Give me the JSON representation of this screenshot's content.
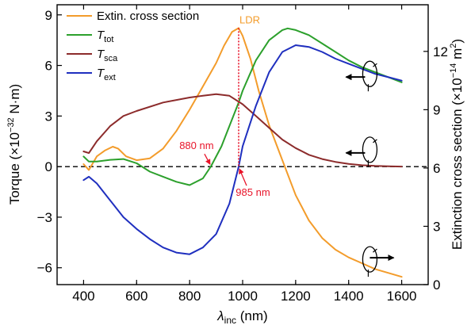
{
  "chart_data": {
    "type": "line",
    "x_axis": {
      "label_symbol": "λ",
      "label_sub": "inc",
      "label_unit": " (nm)",
      "range": [
        300,
        1700
      ],
      "ticks": [
        400,
        600,
        800,
        1000,
        1200,
        1400,
        1600
      ]
    },
    "y_left": {
      "label_pre": "Torque (×10",
      "label_exp": "−32",
      "label_post": " N·m)",
      "range": [
        -7,
        9.6
      ],
      "ticks": [
        -6,
        -3,
        0,
        3,
        6,
        9
      ]
    },
    "y_right": {
      "label_pre": "Extinction cross section (×10",
      "label_exp": "−14",
      "label_mid": " m",
      "label_exp2": "2",
      "label_post": ")",
      "range": [
        0,
        14.4
      ],
      "ticks": [
        0,
        3,
        6,
        9,
        12
      ]
    },
    "legend_position": "top-left",
    "series": [
      {
        "name": "Extin. cross section",
        "name_main": "Extin. cross section",
        "name_sub": "",
        "axis": "right",
        "color": "#f39c2b",
        "x": [
          400,
          420,
          450,
          480,
          510,
          530,
          560,
          600,
          650,
          700,
          750,
          800,
          850,
          900,
          930,
          960,
          985,
          1000,
          1030,
          1060,
          1100,
          1150,
          1200,
          1250,
          1300,
          1350,
          1400,
          1450,
          1500,
          1550,
          1600
        ],
        "y": [
          6.2,
          5.9,
          6.6,
          6.9,
          7.1,
          7.0,
          6.6,
          6.4,
          6.5,
          7.0,
          7.9,
          9.0,
          10.2,
          11.4,
          12.3,
          13.0,
          13.2,
          12.8,
          11.6,
          10.0,
          8.2,
          6.4,
          4.6,
          3.3,
          2.4,
          1.8,
          1.4,
          1.1,
          0.8,
          0.6,
          0.4
        ]
      },
      {
        "name": "Ttot",
        "name_main": "T",
        "name_sub": "tot",
        "axis": "left",
        "color": "#2ca02c",
        "x": [
          400,
          420,
          450,
          500,
          550,
          600,
          650,
          700,
          750,
          800,
          850,
          880,
          920,
          960,
          985,
          1000,
          1050,
          1100,
          1150,
          1170,
          1200,
          1250,
          1300,
          1350,
          1400,
          1450,
          1500,
          1550,
          1600
        ],
        "y": [
          0.6,
          0.3,
          0.3,
          0.4,
          0.45,
          0.2,
          -0.3,
          -0.6,
          -0.9,
          -1.1,
          -0.7,
          0.0,
          1.2,
          2.8,
          3.8,
          4.5,
          6.3,
          7.5,
          8.1,
          8.2,
          8.1,
          7.8,
          7.3,
          6.8,
          6.3,
          5.9,
          5.6,
          5.3,
          5.0
        ]
      },
      {
        "name": "Tsca",
        "name_main": "T",
        "name_sub": "sca",
        "axis": "left",
        "color": "#8c2b2b",
        "x": [
          400,
          420,
          450,
          500,
          550,
          600,
          700,
          800,
          850,
          900,
          950,
          1000,
          1050,
          1100,
          1150,
          1200,
          1250,
          1300,
          1350,
          1400,
          1450,
          1500,
          1550,
          1600
        ],
        "y": [
          0.9,
          0.8,
          1.5,
          2.4,
          3.0,
          3.3,
          3.8,
          4.1,
          4.2,
          4.3,
          4.2,
          3.7,
          3.0,
          2.3,
          1.6,
          1.1,
          0.7,
          0.45,
          0.28,
          0.16,
          0.08,
          0.04,
          0.02,
          0.0
        ]
      },
      {
        "name": "Text",
        "name_main": "T",
        "name_sub": "ext",
        "axis": "left",
        "color": "#1f2fbf",
        "x": [
          400,
          420,
          450,
          500,
          550,
          600,
          650,
          700,
          750,
          800,
          850,
          900,
          950,
          985,
          1000,
          1050,
          1100,
          1150,
          1200,
          1250,
          1300,
          1350,
          1400,
          1450,
          1500,
          1550,
          1600
        ],
        "y": [
          -0.8,
          -0.6,
          -1.0,
          -2.0,
          -3.0,
          -3.7,
          -4.3,
          -4.8,
          -5.1,
          -5.2,
          -4.8,
          -4.0,
          -2.2,
          0.0,
          1.2,
          3.6,
          5.6,
          6.8,
          7.2,
          7.1,
          6.8,
          6.4,
          6.1,
          5.8,
          5.5,
          5.3,
          5.1
        ]
      }
    ],
    "annotations": {
      "ldr_label": "LDR",
      "ldr_x": 985,
      "ldr_top_right_value": 13.2,
      "point_880_label": "880 nm",
      "point_880_x": 880,
      "point_985_label": "985 nm",
      "point_985_x": 985,
      "color_red": "#e8142a"
    },
    "zero_line": {
      "style": "dashed",
      "y": 0
    },
    "torque_icons": [
      {
        "direction": "left",
        "x": 1450,
        "y": 5.5
      },
      {
        "direction": "left",
        "x": 1450,
        "y": 1.0
      },
      {
        "direction": "right",
        "x": 1450,
        "y": -5.5
      }
    ]
  }
}
